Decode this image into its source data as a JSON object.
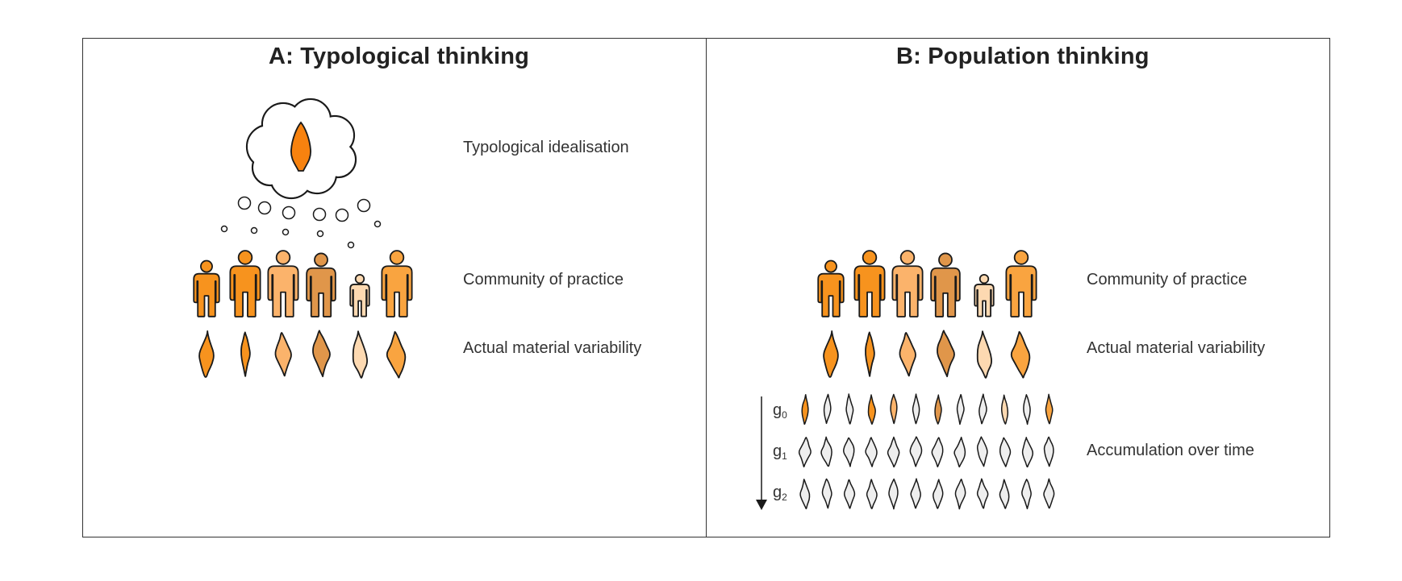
{
  "panels": [
    {
      "title": "A: Typological thinking",
      "labels": {
        "idealisation": "Typological idealisation",
        "community": "Community of practice",
        "variability": "Actual material variability"
      }
    },
    {
      "title": "B: Population thinking",
      "labels": {
        "community": "Community of practice",
        "variability": "Actual material variability",
        "accumulation": "Accumulation over time"
      }
    }
  ],
  "generations": [
    {
      "base": "g",
      "sub": "0"
    },
    {
      "base": "g",
      "sub": "1"
    },
    {
      "base": "g",
      "sub": "2"
    }
  ],
  "colors": {
    "person": [
      "#f7931e",
      "#f7931e",
      "#fbb36b",
      "#e0964a",
      "#fdd9b1",
      "#f9a440"
    ],
    "artifact": [
      "#f7931e",
      "#f7931e",
      "#fbb36b",
      "#e0964a",
      "#fdd9b1",
      "#f9a440"
    ],
    "idealised": "#f7820f",
    "grey": "#eeeeee",
    "outline": "#1a1a1a"
  },
  "icons": {
    "thought": "thought-bubble-icon",
    "person": "person-icon",
    "artifact": "stone-tool-icon",
    "time": "down-arrow-icon"
  }
}
